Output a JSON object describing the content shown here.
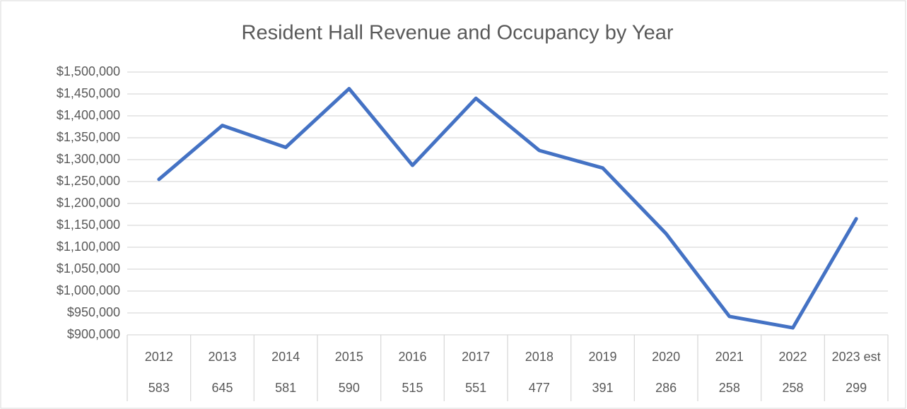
{
  "chart_data": {
    "type": "line",
    "title": "Resident Hall Revenue and Occupancy by Year",
    "categories": [
      "2012",
      "2013",
      "2014",
      "2015",
      "2016",
      "2017",
      "2018",
      "2019",
      "2020",
      "2021",
      "2022",
      "2023 est"
    ],
    "occupancy": [
      583,
      645,
      581,
      590,
      515,
      551,
      477,
      391,
      286,
      258,
      258,
      299
    ],
    "values": [
      1255000,
      1378000,
      1328000,
      1462000,
      1287000,
      1440000,
      1321000,
      1281000,
      1131000,
      942000,
      916000,
      1165000
    ],
    "color": "#4472c4",
    "ylim": [
      900000,
      1500000
    ],
    "yticks": [
      {
        "value": 900000,
        "label": "$900,000"
      },
      {
        "value": 950000,
        "label": "$950,000"
      },
      {
        "value": 1000000,
        "label": "$1,000,000"
      },
      {
        "value": 1050000,
        "label": "$1,050,000"
      },
      {
        "value": 1100000,
        "label": "$1,100,000"
      },
      {
        "value": 1150000,
        "label": "$1,150,000"
      },
      {
        "value": 1200000,
        "label": "$1,200,000"
      },
      {
        "value": 1250000,
        "label": "$1,250,000"
      },
      {
        "value": 1300000,
        "label": "$1,300,000"
      },
      {
        "value": 1350000,
        "label": "$1,350,000"
      },
      {
        "value": 1400000,
        "label": "$1,400,000"
      },
      {
        "value": 1450000,
        "label": "$1,450,000"
      },
      {
        "value": 1500000,
        "label": "$1,500,000"
      }
    ],
    "grid": true
  }
}
